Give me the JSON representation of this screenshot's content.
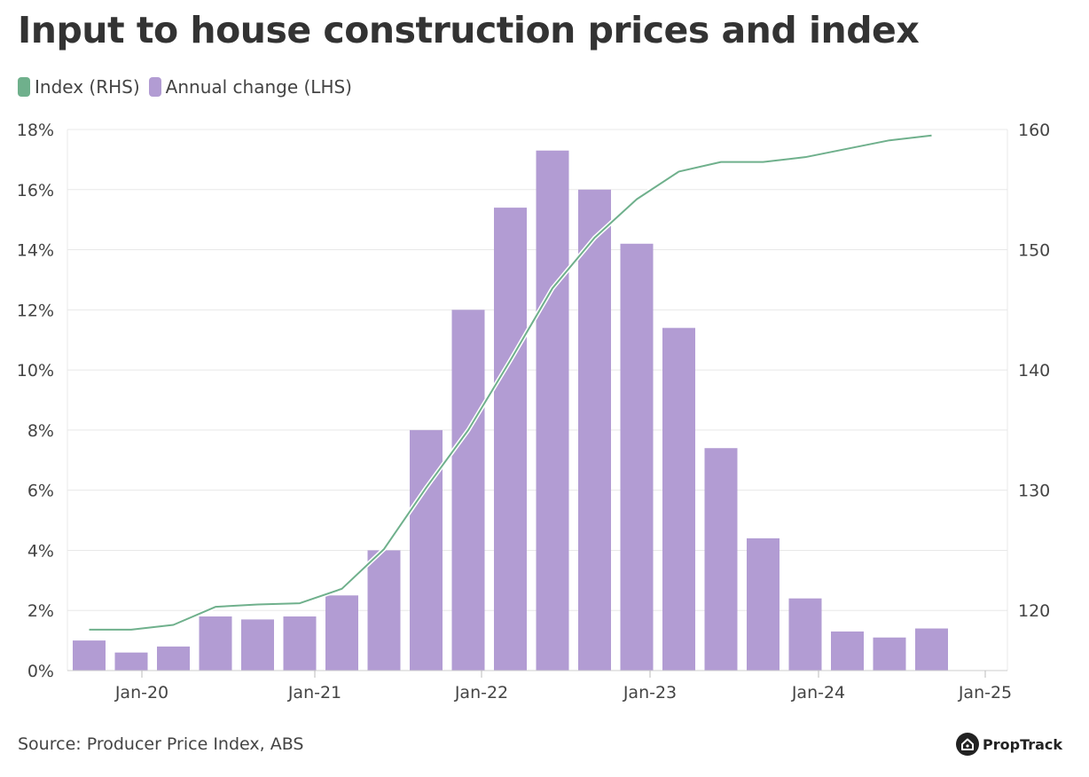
{
  "title": "Input to house construction prices and index",
  "source": "Source: Producer Price Index, ABS",
  "brand": "PropTrack",
  "colors": {
    "bar": "#b29cd3",
    "line": "#6fb08c",
    "grid": "#e8e8e8",
    "text": "#444444"
  },
  "chart_data": {
    "type": "bar",
    "title": "Input to house construction prices and index",
    "legend": [
      {
        "name": "Index (RHS)",
        "color": "#6fb08c"
      },
      {
        "name": "Annual change (LHS)",
        "color": "#b29cd3"
      }
    ],
    "legend_position": "top-left",
    "x_ticks": [
      "Jan-20",
      "Jan-21",
      "Jan-22",
      "Jan-23",
      "Jan-24",
      "Jan-25"
    ],
    "left_axis": {
      "ticks": [
        "0%",
        "2%",
        "4%",
        "6%",
        "8%",
        "10%",
        "12%",
        "14%",
        "16%",
        "18%"
      ],
      "range": [
        0,
        18
      ]
    },
    "right_axis": {
      "ticks": [
        "120",
        "130",
        "140",
        "150",
        "160"
      ],
      "range": [
        115,
        160
      ]
    },
    "grid": true,
    "series": [
      {
        "name": "Annual change (LHS)",
        "type": "bar",
        "axis": "left",
        "values": [
          1.0,
          0.6,
          0.8,
          1.8,
          1.7,
          1.8,
          2.5,
          4.0,
          8.0,
          12.0,
          15.4,
          17.3,
          16.0,
          14.2,
          11.4,
          7.4,
          4.4,
          2.4,
          1.3,
          1.1,
          1.4
        ]
      },
      {
        "name": "Index (RHS)",
        "type": "line",
        "axis": "right",
        "values": [
          118.4,
          118.4,
          118.8,
          120.3,
          120.5,
          120.6,
          121.8,
          125.1,
          130.2,
          135.0,
          140.8,
          146.8,
          151.0,
          154.2,
          156.5,
          157.3,
          157.3,
          157.7,
          158.4,
          159.1,
          159.5
        ]
      }
    ]
  }
}
